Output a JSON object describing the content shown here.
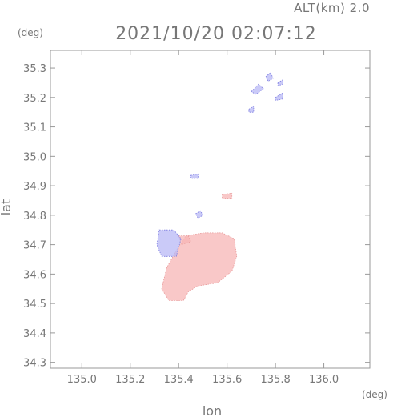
{
  "chart_data": {
    "type": "heatmap",
    "title": "2021/10/20 02:07:12",
    "subtitle": "ALT(km) 2.0",
    "xlabel": "lon",
    "ylabel": "lat",
    "x_unit": "(deg)",
    "y_unit": "(deg)",
    "xlim": [
      134.87,
      136.19
    ],
    "ylim": [
      34.28,
      35.36
    ],
    "x_ticks": [
      135.0,
      135.2,
      135.4,
      135.6,
      135.8,
      136.0
    ],
    "x_tick_labels": [
      "135.0",
      "135.2",
      "135.4",
      "135.6",
      "135.8",
      "136.0"
    ],
    "y_ticks": [
      34.3,
      34.4,
      34.5,
      34.6,
      34.7,
      34.8,
      34.9,
      35.0,
      35.1,
      35.2,
      35.3
    ],
    "y_tick_labels": [
      "34.3",
      "34.4",
      "34.5",
      "34.6",
      "34.7",
      "34.8",
      "34.9",
      "35.0",
      "35.1",
      "35.2",
      "35.3"
    ],
    "grid": false,
    "colors": {
      "positive": "#f7b5b5",
      "negative": "#b8b8f5",
      "axis": "#999999",
      "text": "#777777"
    },
    "regions": [
      {
        "sign": "positive",
        "points": [
          [
            135.43,
            34.73
          ],
          [
            135.5,
            34.74
          ],
          [
            135.58,
            34.74
          ],
          [
            135.63,
            34.72
          ],
          [
            135.64,
            34.66
          ],
          [
            135.62,
            34.61
          ],
          [
            135.56,
            34.57
          ],
          [
            135.48,
            34.56
          ],
          [
            135.44,
            34.54
          ],
          [
            135.42,
            34.51
          ],
          [
            135.36,
            34.51
          ],
          [
            135.33,
            34.55
          ],
          [
            135.35,
            34.62
          ],
          [
            135.39,
            34.68
          ]
        ]
      },
      {
        "sign": "positive",
        "points": [
          [
            135.58,
            34.87
          ],
          [
            135.62,
            34.875
          ],
          [
            135.62,
            34.855
          ],
          [
            135.58,
            34.855
          ]
        ]
      },
      {
        "sign": "positive",
        "points": [
          [
            135.4,
            34.73
          ],
          [
            135.44,
            34.73
          ],
          [
            135.45,
            34.71
          ],
          [
            135.41,
            34.7
          ]
        ]
      },
      {
        "sign": "negative",
        "points": [
          [
            135.32,
            34.75
          ],
          [
            135.38,
            34.75
          ],
          [
            135.41,
            34.72
          ],
          [
            135.39,
            34.66
          ],
          [
            135.33,
            34.66
          ],
          [
            135.31,
            34.7
          ]
        ]
      },
      {
        "sign": "negative",
        "points": [
          [
            135.47,
            34.805
          ],
          [
            135.49,
            34.815
          ],
          [
            135.5,
            34.8
          ],
          [
            135.48,
            34.79
          ]
        ]
      },
      {
        "sign": "negative",
        "points": [
          [
            135.45,
            34.935
          ],
          [
            135.48,
            34.94
          ],
          [
            135.48,
            34.925
          ],
          [
            135.45,
            34.925
          ]
        ]
      },
      {
        "sign": "negative",
        "points": [
          [
            135.69,
            35.16
          ],
          [
            135.71,
            35.17
          ],
          [
            135.71,
            35.15
          ],
          [
            135.69,
            35.15
          ]
        ]
      },
      {
        "sign": "negative",
        "points": [
          [
            135.7,
            35.22
          ],
          [
            135.73,
            35.245
          ],
          [
            135.75,
            35.23
          ],
          [
            135.72,
            35.21
          ]
        ]
      },
      {
        "sign": "negative",
        "points": [
          [
            135.76,
            35.27
          ],
          [
            135.78,
            35.285
          ],
          [
            135.79,
            35.265
          ],
          [
            135.77,
            35.255
          ]
        ]
      },
      {
        "sign": "negative",
        "points": [
          [
            135.8,
            35.2
          ],
          [
            135.83,
            35.215
          ],
          [
            135.83,
            35.195
          ],
          [
            135.8,
            35.19
          ]
        ]
      },
      {
        "sign": "negative",
        "points": [
          [
            135.81,
            35.25
          ],
          [
            135.83,
            35.26
          ],
          [
            135.83,
            35.245
          ],
          [
            135.81,
            35.24
          ]
        ]
      }
    ]
  }
}
